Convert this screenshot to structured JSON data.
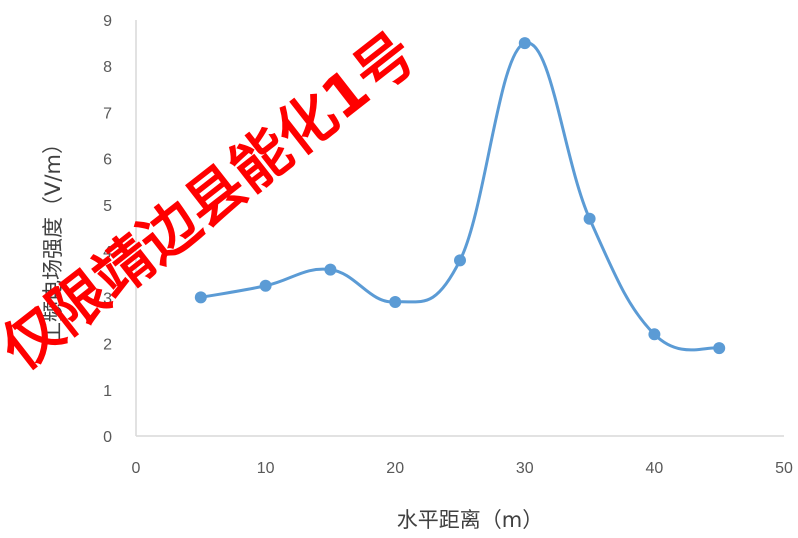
{
  "chart_data": {
    "type": "line",
    "smooth": true,
    "title": "",
    "xlabel": "水平距离（m）",
    "ylabel": "工频电场强度（V/m）",
    "xlim": [
      0,
      50
    ],
    "ylim": [
      0,
      9
    ],
    "x_ticks": [
      "0",
      "10",
      "20",
      "30",
      "40",
      "50"
    ],
    "y_ticks": [
      "0",
      "1",
      "2",
      "3",
      "4",
      "5",
      "6",
      "7",
      "8",
      "9"
    ],
    "grid": false,
    "legend": "none",
    "series": [
      {
        "color": "#5b9bd5",
        "x": [
          5,
          10,
          15,
          20,
          25,
          30,
          35,
          40,
          45
        ],
        "y": [
          3.0,
          3.25,
          3.6,
          2.9,
          3.8,
          8.5,
          4.7,
          2.2,
          1.9
        ]
      }
    ]
  },
  "watermark": {
    "text": "仅限靖边县能化1号",
    "color": "#ff0000"
  }
}
